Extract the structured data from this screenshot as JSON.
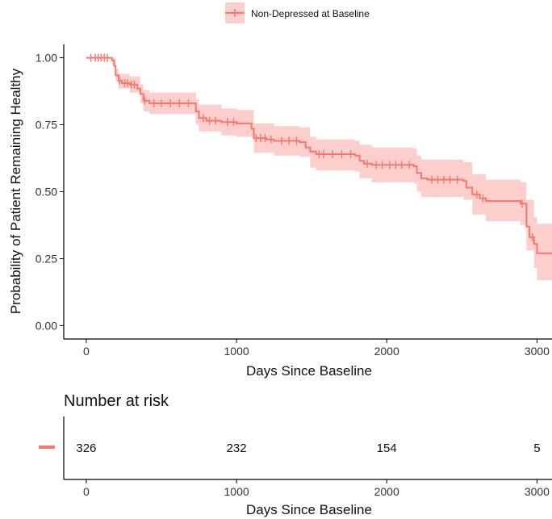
{
  "chart_data": [
    {
      "type": "line",
      "subtype": "kaplan-meier survival curve with confidence band and censor marks",
      "xlabel": "Days Since Baseline",
      "ylabel": "Probability of Patient Remaining Healthy",
      "xlim": [
        -150,
        3100
      ],
      "ylim": [
        -0.05,
        1.05
      ],
      "xticks": [
        0,
        1000,
        2000,
        3000
      ],
      "xtick_labels": [
        "0",
        "1000",
        "2000",
        "3000"
      ],
      "yticks": [
        0.0,
        0.25,
        0.5,
        0.75,
        1.0
      ],
      "ytick_labels": [
        "0.00",
        "0.25",
        "0.50",
        "0.75",
        "1.00"
      ],
      "grid": false,
      "legend": {
        "position": "top",
        "entries": [
          "Non-Depressed at Baseline"
        ]
      },
      "colors": {
        "line": "#F8766D",
        "band": "#FCCFCC"
      },
      "series": [
        {
          "name": "Non-Depressed at Baseline",
          "steps": [
            [
              0,
              1.0
            ],
            [
              170,
              0.99
            ],
            [
              185,
              0.97
            ],
            [
              195,
              0.935
            ],
            [
              215,
              0.915
            ],
            [
              235,
              0.905
            ],
            [
              290,
              0.9
            ],
            [
              340,
              0.885
            ],
            [
              360,
              0.865
            ],
            [
              380,
              0.84
            ],
            [
              420,
              0.83
            ],
            [
              700,
              0.83
            ],
            [
              730,
              0.8
            ],
            [
              750,
              0.775
            ],
            [
              800,
              0.765
            ],
            [
              900,
              0.76
            ],
            [
              1000,
              0.755
            ],
            [
              1100,
              0.735
            ],
            [
              1115,
              0.7
            ],
            [
              1200,
              0.695
            ],
            [
              1250,
              0.69
            ],
            [
              1420,
              0.685
            ],
            [
              1460,
              0.665
            ],
            [
              1490,
              0.65
            ],
            [
              1530,
              0.64
            ],
            [
              1790,
              0.635
            ],
            [
              1820,
              0.615
            ],
            [
              1850,
              0.605
            ],
            [
              1900,
              0.6
            ],
            [
              2180,
              0.595
            ],
            [
              2200,
              0.57
            ],
            [
              2230,
              0.55
            ],
            [
              2270,
              0.545
            ],
            [
              2510,
              0.54
            ],
            [
              2530,
              0.515
            ],
            [
              2570,
              0.49
            ],
            [
              2620,
              0.475
            ],
            [
              2660,
              0.465
            ],
            [
              2890,
              0.455
            ],
            [
              2930,
              0.37
            ],
            [
              2950,
              0.33
            ],
            [
              2980,
              0.305
            ],
            [
              3000,
              0.27
            ],
            [
              3100,
              0.27
            ]
          ],
          "lower": [
            [
              0,
              1.0
            ],
            [
              170,
              0.975
            ],
            [
              195,
              0.91
            ],
            [
              215,
              0.885
            ],
            [
              290,
              0.87
            ],
            [
              360,
              0.83
            ],
            [
              380,
              0.8
            ],
            [
              420,
              0.79
            ],
            [
              700,
              0.79
            ],
            [
              730,
              0.75
            ],
            [
              750,
              0.725
            ],
            [
              900,
              0.71
            ],
            [
              1000,
              0.705
            ],
            [
              1115,
              0.645
            ],
            [
              1250,
              0.635
            ],
            [
              1420,
              0.63
            ],
            [
              1490,
              0.59
            ],
            [
              1530,
              0.58
            ],
            [
              1790,
              0.575
            ],
            [
              1820,
              0.55
            ],
            [
              1900,
              0.535
            ],
            [
              2180,
              0.53
            ],
            [
              2200,
              0.5
            ],
            [
              2230,
              0.48
            ],
            [
              2510,
              0.47
            ],
            [
              2570,
              0.415
            ],
            [
              2660,
              0.39
            ],
            [
              2890,
              0.375
            ],
            [
              2930,
              0.28
            ],
            [
              2980,
              0.215
            ],
            [
              3000,
              0.17
            ],
            [
              3100,
              0.17
            ]
          ],
          "upper": [
            [
              0,
              1.0
            ],
            [
              170,
              1.0
            ],
            [
              195,
              0.96
            ],
            [
              215,
              0.94
            ],
            [
              290,
              0.93
            ],
            [
              360,
              0.9
            ],
            [
              380,
              0.88
            ],
            [
              420,
              0.87
            ],
            [
              700,
              0.87
            ],
            [
              730,
              0.845
            ],
            [
              750,
              0.825
            ],
            [
              900,
              0.81
            ],
            [
              1000,
              0.805
            ],
            [
              1115,
              0.755
            ],
            [
              1250,
              0.745
            ],
            [
              1420,
              0.74
            ],
            [
              1490,
              0.705
            ],
            [
              1530,
              0.695
            ],
            [
              1790,
              0.69
            ],
            [
              1820,
              0.675
            ],
            [
              1900,
              0.665
            ],
            [
              2180,
              0.66
            ],
            [
              2200,
              0.635
            ],
            [
              2230,
              0.62
            ],
            [
              2510,
              0.61
            ],
            [
              2570,
              0.565
            ],
            [
              2660,
              0.545
            ],
            [
              2890,
              0.535
            ],
            [
              2930,
              0.47
            ],
            [
              2980,
              0.405
            ],
            [
              3000,
              0.38
            ],
            [
              3100,
              0.38
            ]
          ],
          "censored": [
            30,
            60,
            80,
            100,
            120,
            140,
            220,
            255,
            275,
            300,
            320,
            390,
            450,
            500,
            560,
            620,
            680,
            780,
            820,
            860,
            940,
            980,
            1130,
            1160,
            1190,
            1230,
            1300,
            1350,
            1400,
            1550,
            1580,
            1640,
            1700,
            1760,
            1870,
            1930,
            1970,
            2020,
            2060,
            2100,
            2150,
            2300,
            2340,
            2380,
            2420,
            2470,
            2600,
            2640,
            2900,
            2970
          ]
        }
      ]
    },
    {
      "type": "table",
      "title": "Number at risk",
      "xlabel": "Days Since Baseline",
      "xlim": [
        -150,
        3100
      ],
      "xticks": [
        0,
        1000,
        2000,
        3000
      ],
      "xtick_labels": [
        "0",
        "1000",
        "2000",
        "3000"
      ],
      "rows": [
        {
          "name": "Non-Depressed at Baseline",
          "color": "#F8766D",
          "x": [
            0,
            1000,
            2000,
            3000
          ],
          "counts": [
            "326",
            "232",
            "154",
            "5"
          ]
        }
      ]
    }
  ]
}
